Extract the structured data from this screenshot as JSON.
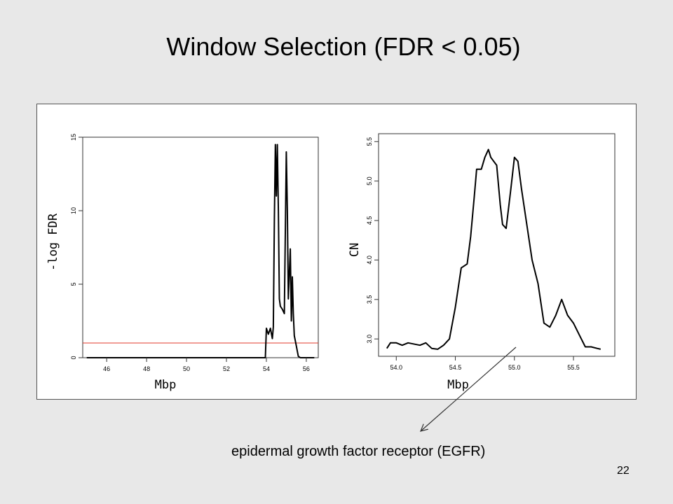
{
  "slide": {
    "title": "Window Selection  (FDR < 0.05)",
    "annotation": "epidermal growth factor receptor (EGFR)",
    "page_number": "22"
  },
  "chart_data": [
    {
      "type": "line",
      "title": "",
      "xlabel": "Mbp",
      "ylabel": "-log FDR",
      "xlim": [
        44.8,
        56.6
      ],
      "ylim": [
        0,
        15
      ],
      "xticks": [
        46,
        48,
        50,
        52,
        54,
        56
      ],
      "yticks": [
        0,
        5,
        10,
        15
      ],
      "line_color": "#000000",
      "threshold": {
        "y": 1.0,
        "color": "#e0392b"
      },
      "x": [
        45.0,
        53.95,
        54.0,
        54.1,
        54.2,
        54.3,
        54.35,
        54.4,
        54.45,
        54.5,
        54.55,
        54.6,
        54.65,
        54.7,
        54.8,
        54.9,
        55.0,
        55.05,
        55.1,
        55.2,
        55.25,
        55.3,
        55.35,
        55.4,
        55.5,
        55.6,
        55.7,
        56.4
      ],
      "y": [
        0,
        0,
        2.0,
        1.6,
        2.0,
        1.3,
        2.1,
        9.5,
        14.5,
        11.0,
        14.5,
        10.0,
        4.0,
        3.5,
        3.3,
        3.0,
        14.0,
        10.0,
        4.0,
        7.4,
        2.5,
        5.5,
        3.0,
        1.5,
        0.8,
        0.1,
        0,
        0
      ],
      "series": [
        {
          "name": "",
          "x": [
            45.0,
            56.4
          ],
          "y": [
            1.0,
            1.0
          ]
        }
      ]
    },
    {
      "type": "line",
      "title": "",
      "xlabel": "Mbp",
      "ylabel": "CN",
      "xlim": [
        53.85,
        55.85
      ],
      "ylim": [
        2.78,
        5.6
      ],
      "xticks": [
        54.0,
        54.5,
        55.0,
        55.5
      ],
      "yticks": [
        3.0,
        3.5,
        4.0,
        4.5,
        5.0,
        5.5
      ],
      "line_color": "#000000",
      "x": [
        53.92,
        53.95,
        54.0,
        54.05,
        54.1,
        54.2,
        54.25,
        54.3,
        54.35,
        54.4,
        54.45,
        54.5,
        54.55,
        54.6,
        54.63,
        54.66,
        54.68,
        54.72,
        54.75,
        54.78,
        54.8,
        54.85,
        54.88,
        54.9,
        54.93,
        54.97,
        55.0,
        55.03,
        55.06,
        55.1,
        55.15,
        55.2,
        55.25,
        55.3,
        55.35,
        55.4,
        55.45,
        55.5,
        55.55,
        55.6,
        55.65,
        55.7,
        55.73
      ],
      "y": [
        2.88,
        2.95,
        2.95,
        2.92,
        2.95,
        2.92,
        2.95,
        2.88,
        2.87,
        2.92,
        3.0,
        3.4,
        3.9,
        3.95,
        4.3,
        4.8,
        5.15,
        5.15,
        5.3,
        5.4,
        5.3,
        5.2,
        4.7,
        4.45,
        4.4,
        4.9,
        5.3,
        5.25,
        4.9,
        4.5,
        4.0,
        3.7,
        3.2,
        3.15,
        3.3,
        3.5,
        3.3,
        3.2,
        3.05,
        2.9,
        2.9,
        2.88,
        2.87
      ]
    }
  ]
}
